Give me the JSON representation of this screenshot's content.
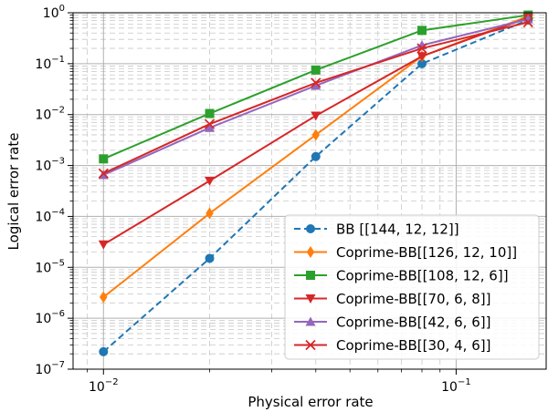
{
  "chart_data": {
    "type": "line",
    "title": "",
    "xlabel": "Physical error rate",
    "ylabel": "Logical error rate",
    "xscale": "log",
    "yscale": "log",
    "xlim": [
      0.0082,
      0.18
    ],
    "ylim": [
      1e-07,
      1
    ],
    "grid": true,
    "legend_position": "lower-right",
    "x": [
      0.01,
      0.02,
      0.04,
      0.08,
      0.16
    ],
    "x_ticks": [
      {
        "value": 0.01,
        "base": "10",
        "exp": "−2"
      },
      {
        "value": 0.1,
        "base": "10",
        "exp": "−1"
      }
    ],
    "y_ticks": [
      {
        "value": 1,
        "base": "10",
        "exp": "0"
      },
      {
        "value": 0.1,
        "base": "10",
        "exp": "−1"
      },
      {
        "value": 0.01,
        "base": "10",
        "exp": "−2"
      },
      {
        "value": 0.001,
        "base": "10",
        "exp": "−3"
      },
      {
        "value": 0.0001,
        "base": "10",
        "exp": "−4"
      },
      {
        "value": 1e-05,
        "base": "10",
        "exp": "−5"
      },
      {
        "value": 1e-06,
        "base": "10",
        "exp": "−6"
      },
      {
        "value": 1e-07,
        "base": "10",
        "exp": "−7"
      }
    ],
    "series": [
      {
        "name": "BB [[144, 12, 12]]",
        "color": "#1f77b4",
        "marker": "circle",
        "dashed": true,
        "values": [
          2.2e-07,
          1.5e-05,
          0.0015,
          0.1,
          0.72
        ]
      },
      {
        "name": "Coprime-BB[[126, 12, 10]]",
        "color": "#ff7f0e",
        "marker": "diamond",
        "dashed": false,
        "values": [
          2.6e-06,
          0.000115,
          0.004,
          0.14,
          0.85
        ]
      },
      {
        "name": "Coprime-BB[[108, 12, 6]]",
        "color": "#2ca02c",
        "marker": "square",
        "dashed": false,
        "values": [
          0.00135,
          0.0105,
          0.075,
          0.45,
          0.9
        ]
      },
      {
        "name": "Coprime-BB[[70, 6, 8]]",
        "color": "#d62728",
        "marker": "triangle-down",
        "dashed": false,
        "values": [
          2.8e-05,
          0.0005,
          0.0095,
          0.14,
          0.8
        ]
      },
      {
        "name": "Coprime-BB[[42, 6, 6]]",
        "color": "#9467bd",
        "marker": "triangle-up",
        "dashed": false,
        "values": [
          0.00065,
          0.0055,
          0.037,
          0.23,
          0.75
        ]
      },
      {
        "name": "Coprime-BB[[30, 4, 6]]",
        "color": "#d62728",
        "marker": "x",
        "dashed": false,
        "values": [
          0.0007,
          0.0065,
          0.042,
          0.2,
          0.65
        ]
      }
    ]
  }
}
